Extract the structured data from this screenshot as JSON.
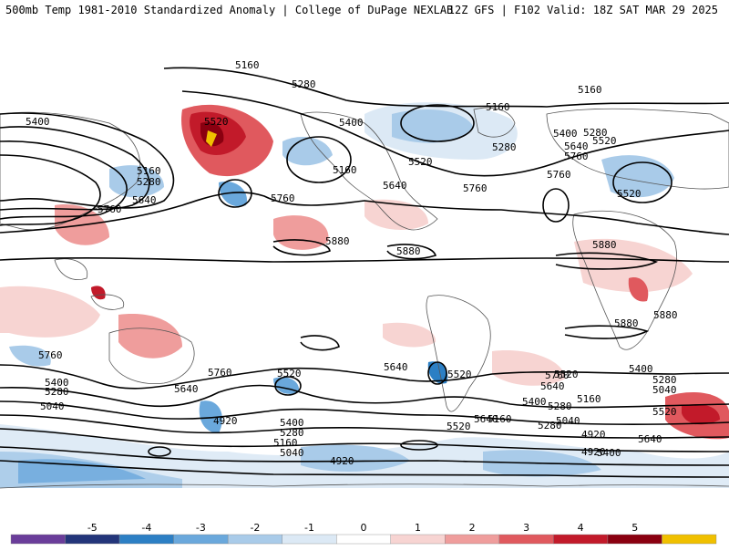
{
  "header": {
    "left": "500mb Temp 1981-2010 Standardized Anomaly | College of DuPage NEXLAB",
    "right": "12Z GFS | F102 Valid: 18Z SAT MAR 29 2025"
  },
  "colorbar": {
    "ticks": [
      "-5",
      "-4",
      "-3",
      "-2",
      "-1",
      "0",
      "1",
      "2",
      "3",
      "4",
      "5"
    ],
    "colors": [
      "#6a3d9a",
      "#23357a",
      "#2c7fc4",
      "#6aa8dc",
      "#a9cbe9",
      "#dce9f5",
      "#ffffff",
      "#f7d4d2",
      "#ef9d9c",
      "#e0595e",
      "#c21a2a",
      "#8a0010",
      "#f0c000"
    ]
  },
  "contour_labels": [
    "5160",
    "5280",
    "5160",
    "5400",
    "5520",
    "5400",
    "5280",
    "5160",
    "5640",
    "5760",
    "5520",
    "5640",
    "5760",
    "5400",
    "5280",
    "5520",
    "5160",
    "5640",
    "5760",
    "5520",
    "5880",
    "5880",
    "5880",
    "5880",
    "5880",
    "5760",
    "5760",
    "5520",
    "5640",
    "5520",
    "5760",
    "5640",
    "5400",
    "5280",
    "5040",
    "4920",
    "5400",
    "5280",
    "5160",
    "5040",
    "5520",
    "5400",
    "5280",
    "5160",
    "5040",
    "4920",
    "4920",
    "4920",
    "5760",
    "5640",
    "5400",
    "5280",
    "5160",
    "5040",
    "5520",
    "5280",
    "5640",
    "5520",
    "5640",
    "5400",
    "5280",
    "5160",
    "5760"
  ],
  "anomaly_colors": {
    "strong_warm": "#8a0010",
    "warm": "#c21a2a",
    "mid_warm": "#e0595e",
    "light_warm": "#f7d4d2",
    "light_cold": "#dce9f5",
    "cold": "#6aa8dc",
    "strong_cold": "#2c7fc4",
    "extreme_warm": "#f0c000"
  }
}
